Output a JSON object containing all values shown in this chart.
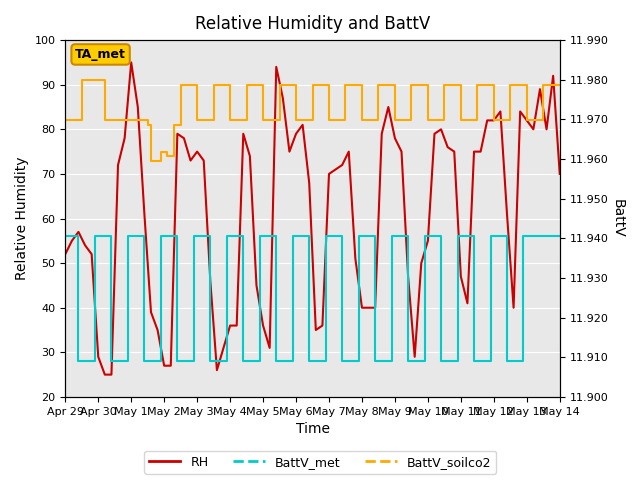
{
  "title": "Relative Humidity and BattV",
  "xlabel": "Time",
  "ylabel_left": "Relative Humidity",
  "ylabel_right": "BattV",
  "ylim_left": [
    20,
    100
  ],
  "ylim_right": [
    11.9,
    11.99
  ],
  "bg_color": "#e8e8e8",
  "annotation_text": "TA_met",
  "annotation_color": "#ffcc00",
  "annotation_border": "#cc8800",
  "x_tick_labels": [
    "Apr 29",
    "Apr 30",
    "May 1",
    "May 2",
    "May 3",
    "May 4",
    "May 5",
    "May 6",
    "May 7",
    "May 8",
    "May 9",
    "May 10",
    "May 11",
    "May 12",
    "May 13",
    "May 14"
  ],
  "rh_color": "#cc0000",
  "battv_met_color": "#00cccc",
  "battv_soilco2_color": "#ffaa00",
  "legend_labels": [
    "RH",
    "BattV_met",
    "BattV_soilco2"
  ],
  "rh_lw": 1.5,
  "batt_lw": 1.5,
  "rh_data_x": [
    0,
    0.2,
    0.4,
    0.6,
    0.8,
    1.0,
    1.2,
    1.4,
    1.6,
    1.8,
    2.0,
    2.2,
    2.4,
    2.6,
    2.8,
    3.0,
    3.2,
    3.4,
    3.6,
    3.8,
    4.0,
    4.2,
    4.4,
    4.6,
    4.8,
    5.0,
    5.2,
    5.4,
    5.6,
    5.8,
    6.0,
    6.2,
    6.4,
    6.6,
    6.8,
    7.0,
    7.2,
    7.4,
    7.6,
    7.8,
    8.0,
    8.2,
    8.4,
    8.6,
    8.8,
    9.0,
    9.2,
    9.4,
    9.6,
    9.8,
    10.0,
    10.2,
    10.4,
    10.6,
    10.8,
    11.0,
    11.2,
    11.4,
    11.6,
    11.8,
    12.0,
    12.2,
    12.4,
    12.6,
    12.8,
    13.0,
    13.2,
    13.4,
    13.6,
    13.8,
    14.0,
    14.2,
    14.4,
    14.6,
    14.8,
    15.0
  ],
  "rh_data_y": [
    52,
    55,
    57,
    54,
    52,
    29,
    25,
    25,
    72,
    78,
    95,
    85,
    61,
    39,
    35,
    27,
    27,
    79,
    78,
    73,
    75,
    73,
    46,
    26,
    31,
    36,
    36,
    79,
    74,
    45,
    36,
    31,
    94,
    87,
    75,
    79,
    81,
    68,
    35,
    36,
    70,
    71,
    72,
    75,
    51,
    40,
    40,
    40,
    79,
    85,
    78,
    75,
    47,
    29,
    50,
    55,
    79,
    80,
    76,
    75,
    47,
    41,
    75,
    75,
    82,
    82,
    84,
    61,
    40,
    84,
    82,
    80,
    89,
    80,
    92,
    70
  ],
  "battv_met_x": [
    0,
    0.4,
    0.4,
    0.9,
    0.9,
    1.4,
    1.4,
    1.9,
    1.9,
    2.4,
    2.4,
    2.9,
    2.9,
    3.4,
    3.4,
    3.9,
    3.9,
    4.4,
    4.4,
    4.9,
    4.9,
    5.4,
    5.4,
    5.9,
    5.9,
    6.4,
    6.4,
    6.9,
    6.9,
    7.4,
    7.4,
    7.9,
    7.9,
    8.4,
    8.4,
    8.9,
    8.9,
    9.4,
    9.4,
    9.9,
    9.9,
    10.4,
    10.4,
    10.9,
    10.9,
    11.4,
    11.4,
    11.9,
    11.9,
    12.4,
    12.4,
    12.9,
    12.9,
    13.4,
    13.4,
    13.9,
    13.9,
    14.5,
    15.0
  ],
  "battv_met_y": [
    56,
    56,
    28,
    28,
    56,
    56,
    28,
    28,
    56,
    56,
    28,
    28,
    56,
    56,
    28,
    28,
    56,
    56,
    28,
    28,
    56,
    56,
    28,
    28,
    56,
    56,
    28,
    28,
    56,
    56,
    28,
    28,
    56,
    56,
    28,
    28,
    56,
    56,
    28,
    28,
    56,
    56,
    28,
    28,
    56,
    56,
    28,
    28,
    56,
    56,
    28,
    28,
    56,
    56,
    28,
    28,
    56,
    56,
    56
  ],
  "battv_soilco2_x": [
    0,
    0.5,
    0.5,
    1.2,
    1.2,
    1.5,
    1.5,
    2.0,
    2.0,
    2.5,
    2.5,
    2.6,
    2.6,
    2.9,
    2.9,
    3.1,
    3.1,
    3.3,
    3.3,
    3.5,
    3.5,
    4.0,
    4.0,
    4.5,
    4.5,
    5.0,
    5.0,
    5.5,
    5.5,
    6.0,
    6.0,
    6.5,
    6.5,
    7.0,
    7.0,
    7.5,
    7.5,
    8.0,
    8.0,
    8.5,
    8.5,
    9.0,
    9.0,
    9.5,
    9.5,
    10.0,
    10.0,
    10.5,
    10.5,
    11.0,
    11.0,
    11.5,
    11.5,
    12.0,
    12.0,
    12.5,
    12.5,
    13.0,
    13.0,
    13.5,
    13.5,
    14.0,
    14.0,
    14.5,
    14.5,
    15.0
  ],
  "battv_soilco2_y": [
    82,
    82,
    91,
    91,
    82,
    82,
    82,
    82,
    82,
    82,
    81,
    81,
    73,
    73,
    75,
    75,
    74,
    74,
    81,
    81,
    90,
    90,
    82,
    82,
    90,
    90,
    82,
    82,
    90,
    90,
    82,
    82,
    90,
    90,
    82,
    82,
    90,
    90,
    82,
    82,
    90,
    90,
    82,
    82,
    90,
    90,
    82,
    82,
    90,
    90,
    82,
    82,
    90,
    90,
    82,
    82,
    90,
    90,
    82,
    82,
    90,
    90,
    82,
    82,
    90,
    90
  ]
}
